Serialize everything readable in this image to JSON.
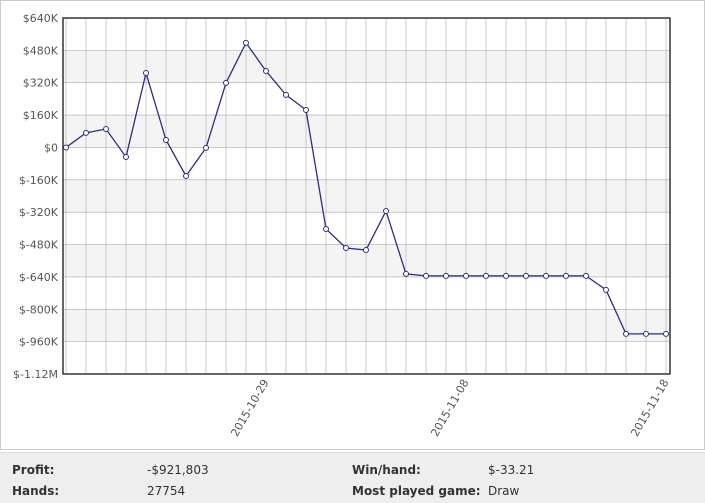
{
  "chart_data": {
    "type": "line",
    "categories": [
      null,
      null,
      null,
      null,
      null,
      null,
      null,
      null,
      null,
      null,
      "2015-10-29",
      null,
      null,
      null,
      null,
      null,
      null,
      null,
      null,
      null,
      "2015-11-08",
      null,
      null,
      null,
      null,
      null,
      null,
      null,
      null,
      null,
      "2015-11-18"
    ],
    "series": [
      {
        "name": "Profit",
        "color": "#2e2e7a",
        "values": [
          0,
          72000,
          91000,
          -47000,
          368000,
          37000,
          -141000,
          -2000,
          319000,
          517000,
          378000,
          260000,
          185000,
          -403000,
          -497000,
          -507000,
          -314000,
          -625000,
          -635000,
          -635000,
          -635000,
          -635000,
          -635000,
          -635000,
          -635000,
          -635000,
          -635000,
          -704000,
          -921803,
          -921803,
          -921803
        ]
      }
    ],
    "ylim": [
      -1120000,
      640000
    ],
    "yticks": [
      {
        "value": -1120000,
        "label": "$-1.12M"
      },
      {
        "value": -960000,
        "label": "$-960K"
      },
      {
        "value": -800000,
        "label": "$-800K"
      },
      {
        "value": -640000,
        "label": "$-640K"
      },
      {
        "value": -480000,
        "label": "$-480K"
      },
      {
        "value": -320000,
        "label": "$-320K"
      },
      {
        "value": -160000,
        "label": "$-160K"
      },
      {
        "value": 0,
        "label": "$0"
      },
      {
        "value": 160000,
        "label": "$160K"
      },
      {
        "value": 320000,
        "label": "$320K"
      },
      {
        "value": 480000,
        "label": "$480K"
      },
      {
        "value": 640000,
        "label": "$640K"
      }
    ],
    "grid": true
  },
  "stats": [
    {
      "label": "Profit:",
      "value": "-$921,803"
    },
    {
      "label": "Win/hand:",
      "value": "$-33.21"
    },
    {
      "label": "Hands:",
      "value": "27754"
    },
    {
      "label": "Most played game:",
      "value": "Draw"
    }
  ]
}
